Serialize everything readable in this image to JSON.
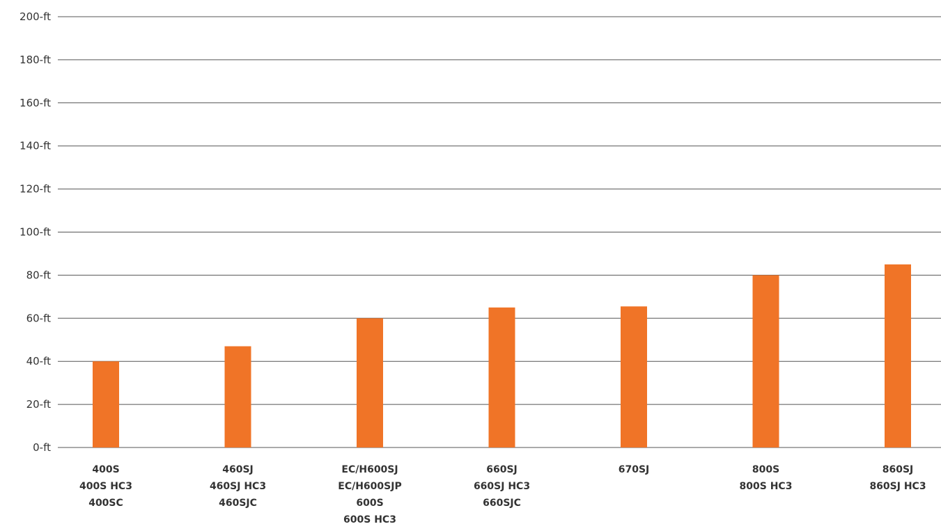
{
  "chart_data": {
    "type": "bar",
    "title": "",
    "xlabel": "",
    "ylabel": "",
    "ylim": [
      0,
      200
    ],
    "ytick_values": [
      0,
      20,
      40,
      60,
      80,
      100,
      120,
      140,
      160,
      180,
      200
    ],
    "ytick_labels": [
      "0-ft",
      "20-ft",
      "40-ft",
      "60-ft",
      "80-ft",
      "100-ft",
      "120-ft",
      "140-ft",
      "160-ft",
      "180-ft",
      "200-ft"
    ],
    "categories": [
      [
        "400S",
        "400S HC3",
        "400SC"
      ],
      [
        "460SJ",
        "460SJ HC3",
        "460SJC"
      ],
      [
        "EC/H600SJ",
        "EC/H600SJP",
        "600S",
        "600S HC3"
      ],
      [
        "660SJ",
        "660SJ HC3",
        "660SJC"
      ],
      [
        "670SJ"
      ],
      [
        "800S",
        "800S HC3"
      ],
      [
        "860SJ",
        "860SJ HC3"
      ]
    ],
    "values": [
      40,
      47,
      60,
      65,
      65.5,
      80,
      85
    ],
    "bar_color": "#f07427",
    "grid": true,
    "legend": "none"
  }
}
